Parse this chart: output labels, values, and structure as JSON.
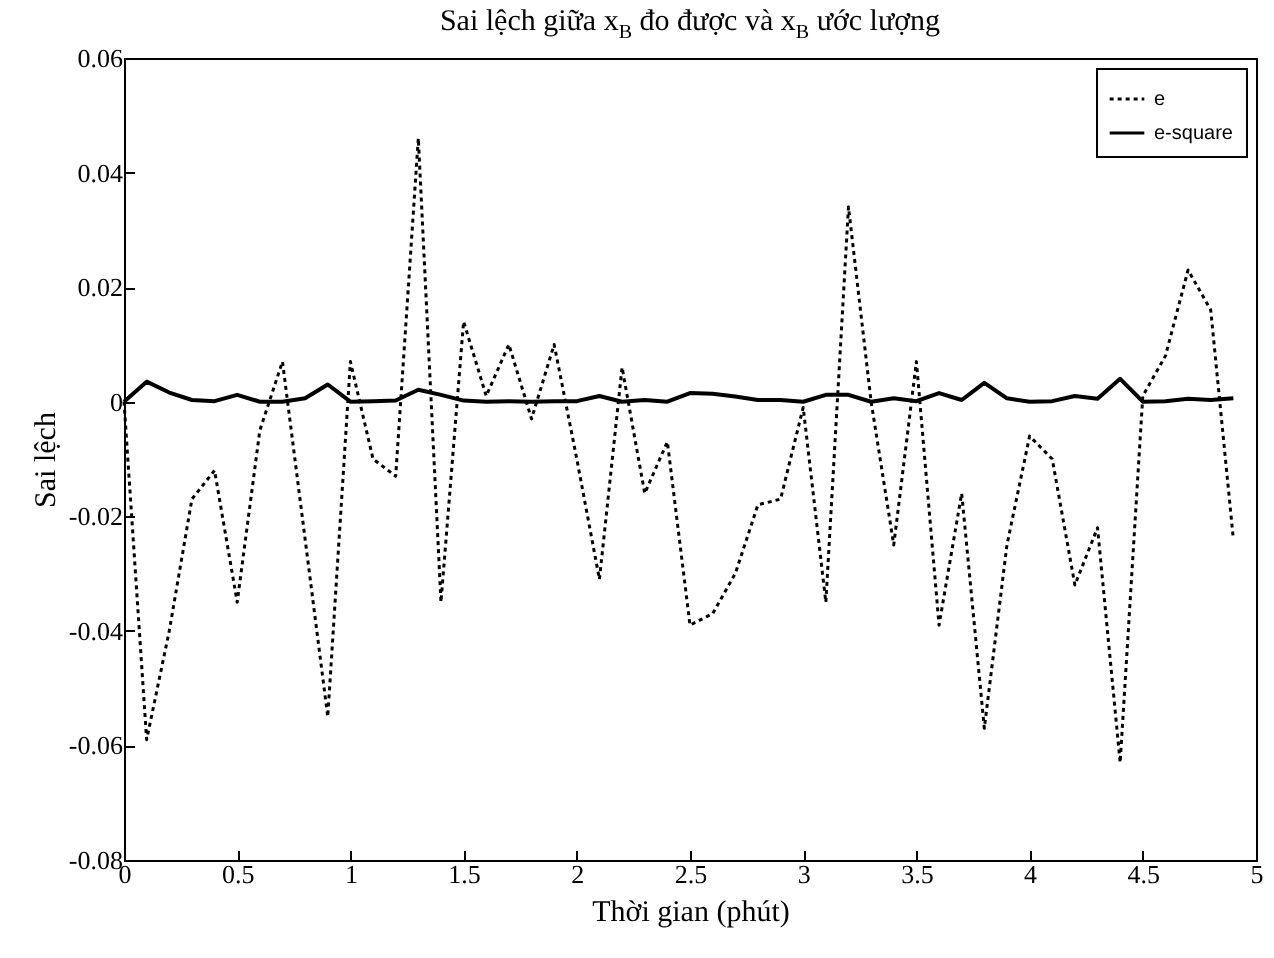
{
  "chart_data": {
    "type": "line",
    "title": "Sai lệch giữa x$_{B}$ đo được và x$_{B}$ ước lượng",
    "xlabel": "Thời gian (phút)",
    "ylabel": "Sai lệch",
    "x": [
      0,
      0.1,
      0.2,
      0.3,
      0.4,
      0.5,
      0.6,
      0.7,
      0.8,
      0.9,
      1.0,
      1.1,
      1.2,
      1.3,
      1.4,
      1.5,
      1.6,
      1.7,
      1.8,
      1.9,
      2.0,
      2.1,
      2.2,
      2.3,
      2.4,
      2.5,
      2.6,
      2.7,
      2.8,
      2.9,
      3.0,
      3.1,
      3.2,
      3.3,
      3.4,
      3.5,
      3.6,
      3.7,
      3.8,
      3.9,
      4.0,
      4.1,
      4.2,
      4.3,
      4.4,
      4.5,
      4.6,
      4.7,
      4.8,
      4.9
    ],
    "series": [
      {
        "name": "e",
        "color": "#000000",
        "line_style": "dotted",
        "values": [
          0,
          -0.059,
          -0.04,
          -0.017,
          -0.012,
          -0.035,
          -0.005,
          0.007,
          -0.024,
          -0.055,
          0.007,
          -0.01,
          -0.013,
          0.046,
          -0.035,
          0.014,
          0.001,
          0.01,
          -0.003,
          0.01,
          -0.01,
          -0.031,
          0.006,
          -0.016,
          -0.007,
          -0.039,
          -0.037,
          -0.03,
          -0.018,
          -0.017,
          -0.001,
          -0.035,
          0.034,
          0.0,
          -0.025,
          0.007,
          -0.039,
          -0.016,
          -0.057,
          -0.025,
          -0.006,
          -0.01,
          -0.032,
          -0.022,
          -0.063,
          0.001,
          0.008,
          0.023,
          0.016,
          -0.024
        ]
      },
      {
        "name": "e-square",
        "color": "#000000",
        "line_style": "solid",
        "values": [
          0,
          0.0035,
          0.0016,
          0.0003,
          0.0001,
          0.0012,
          0,
          0,
          0.0006,
          0.003,
          0,
          0.0001,
          0.0002,
          0.0021,
          0.0012,
          0.0002,
          0,
          0.0001,
          0,
          0.0001,
          0.0001,
          0.001,
          0,
          0.0003,
          0,
          0.0015,
          0.0014,
          0.0009,
          0.0003,
          0.0003,
          0,
          0.0012,
          0.0012,
          0,
          0.0006,
          0.0001,
          0.0015,
          0.0003,
          0.0033,
          0.0006,
          0,
          0.0001,
          0.001,
          0.0005,
          0.004,
          0,
          0.0001,
          0.0005,
          0.0003,
          0.0006
        ]
      }
    ],
    "xlim": [
      0,
      5
    ],
    "xticks": [
      0,
      0.5,
      1,
      1.5,
      2,
      2.5,
      3,
      3.5,
      4,
      4.5,
      5
    ],
    "ylim": [
      -0.08,
      0.06
    ],
    "yticks": [
      -0.08,
      -0.06,
      -0.04,
      -0.02,
      0,
      0.02,
      0.04,
      0.06
    ],
    "legend": "top right",
    "marker": "none",
    "grid": false
  }
}
